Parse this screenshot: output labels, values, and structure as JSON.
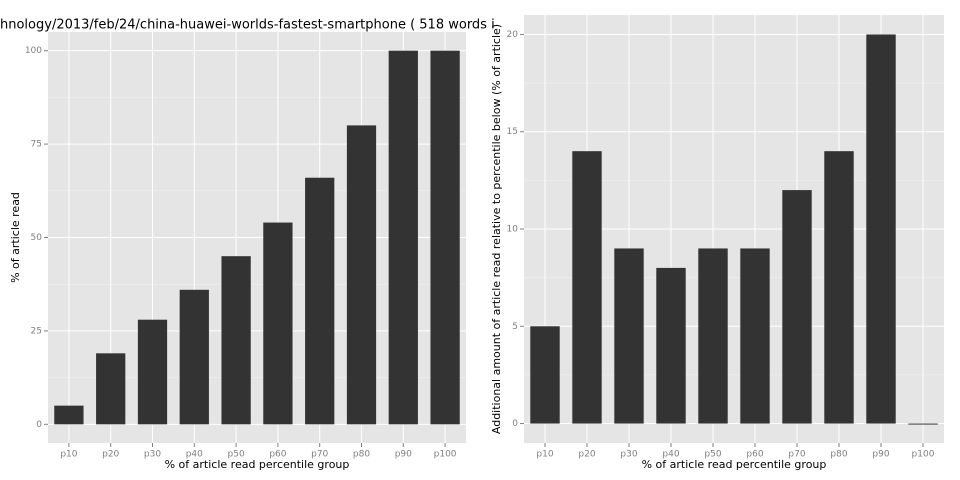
{
  "chart_data": [
    {
      "type": "bar",
      "title": "hnology/2013/feb/24/china-huawei-worlds-fastest-smartphone ( 518 words i",
      "x_label": "% of article read percentile group",
      "y_label": "% of article read",
      "categories": [
        "p10",
        "p20",
        "p30",
        "p40",
        "p50",
        "p60",
        "p70",
        "p80",
        "p90",
        "p100"
      ],
      "values": [
        5,
        19,
        28,
        36,
        45,
        54,
        66,
        80,
        100,
        100
      ],
      "color": "#333333",
      "ylim": [
        -5,
        105
      ],
      "yticks": [
        0,
        25,
        50,
        75,
        100
      ],
      "grid": true
    },
    {
      "type": "bar",
      "x_label": "% of article read percentile group",
      "y_label": "Additional amount of article read relative to percentile below (% of article)",
      "categories": [
        "p10",
        "p20",
        "p30",
        "p40",
        "p50",
        "p60",
        "p70",
        "p80",
        "p90",
        "p100"
      ],
      "values": [
        5,
        14,
        9,
        8,
        9,
        9,
        12,
        14,
        20,
        0
      ],
      "color": "#333333",
      "ylim": [
        -1,
        21
      ],
      "yticks": [
        0,
        5,
        10,
        15,
        20
      ],
      "grid": true
    }
  ]
}
